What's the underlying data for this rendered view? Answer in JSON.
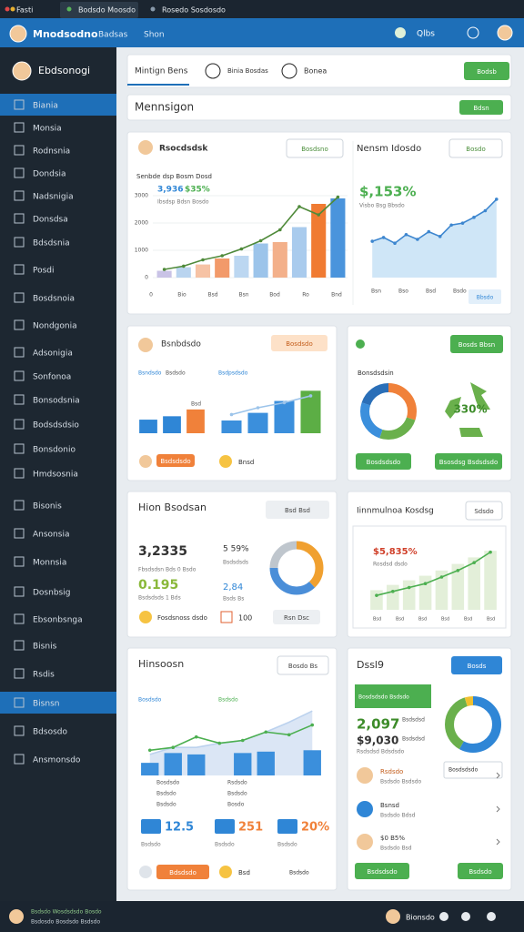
{
  "tabs": [
    "Fasti",
    "Bodsdo Moosdo",
    "Rosedo Sosdosdo"
  ],
  "header": {
    "title": "Mnodsodno",
    "nav": [
      "Badsas",
      "Shon"
    ],
    "user": "Qlbs"
  },
  "sidebar": {
    "title": "Ebdsonogi",
    "items": [
      "Biania",
      "Monsia",
      "Rodnsnia",
      "Dondsia",
      "Nadsnigia",
      "Donsdsa",
      "Bdsdsnia",
      "Posdi",
      "Bosdsnoia",
      "Nondgonia",
      "Adsonigia",
      "Sonfonoa",
      "Bonsodsnia",
      "Bodsdsdsio",
      "Bonsdonio",
      "Hmdsosnia",
      "Bisonis",
      "Ansonsia",
      "Monnsia",
      "Dosnbsig",
      "Ebsonbsnga",
      "Bisnis",
      "Rsdis",
      "Bisnsn",
      "Bdsosdo",
      "Ansmonsdo"
    ],
    "active": [
      0,
      23
    ]
  },
  "toolbar": {
    "tab": "Mintign Bens",
    "filters": [
      "Binia Bosdas",
      "Bonea"
    ],
    "button": "Bodsb"
  },
  "section": {
    "title": "Mennsigon",
    "button": "Bdsn"
  },
  "sales": {
    "title": "Rsocdsdsk",
    "button": "Bosdsno",
    "subtitle": "Senbde dsp Bosm Dosd",
    "stats": [
      "3,936",
      "$35%"
    ],
    "note": "Ibsdsp Bdsn Bosdo",
    "ylim": [
      0,
      3500
    ],
    "yticks": [
      0,
      1000,
      2000,
      3000
    ],
    "xlabels": [
      "0",
      "Bio",
      "Bsd",
      "Bsn",
      "Bod",
      "Ro",
      "Bnd"
    ],
    "bars": [
      250,
      380,
      480,
      700,
      800,
      1250,
      1300,
      1850,
      2700,
      2900
    ],
    "bar_colors": [
      "#c9c3e6",
      "#b9d4ef",
      "#f6c3a5",
      "#f29a6a",
      "#bcd7f1",
      "#9cc4ea",
      "#f3b08a",
      "#a9cbed",
      "#f07b32",
      "#4a94dc"
    ],
    "line": [
      300,
      420,
      650,
      800,
      1050,
      1350,
      1750,
      2600,
      2300,
      2950
    ],
    "line_color": "#4f8a3a"
  },
  "trend": {
    "title": "Nensm Idosdo",
    "button": "Bosdo",
    "stat": "$,153%",
    "note": "Visbo Bsg Bbsdo",
    "ylim": [
      0,
      100
    ],
    "values": [
      38,
      42,
      36,
      45,
      40,
      48,
      43,
      55,
      57,
      63,
      70,
      82
    ],
    "xlabels": [
      "Bsn",
      "Bso",
      "Bsd",
      "Bsdo"
    ],
    "legend": "Bbsdo",
    "color": "#3d86cf"
  },
  "compare": {
    "title": "Bsnbdsdo",
    "button": "Bosdsdo",
    "chip": "Bsdsdsdo",
    "badge": "Bnsd",
    "charts": [
      {
        "label": "Bsndsdo",
        "label2": "Bsdsdo",
        "peak": "Bsd",
        "ylim": [
          0,
          60
        ],
        "bars": [
          16,
          20,
          28
        ],
        "bar_colors": [
          "#2f86d6",
          "#2f86d6",
          "#f0813a"
        ]
      },
      {
        "label": "Bsdpsdsdo",
        "ylim": [
          0,
          60
        ],
        "bars": [
          15,
          24,
          38,
          50
        ],
        "bar_colors": [
          "#3b8fdc",
          "#3b8fdc",
          "#3b8fdc",
          "#5cae45"
        ],
        "line": [
          22,
          30,
          36,
          44
        ]
      }
    ]
  },
  "eco": {
    "label": "Bonsdsdsin",
    "button": "Bosds Bbsn",
    "donut": [
      30,
      25,
      25,
      20
    ],
    "donut_colors": [
      "#f0813a",
      "#6ab04c",
      "#3b8fdc",
      "#2a6fb8"
    ],
    "center": "330%",
    "buttons": [
      "Bosdsdsdo",
      "Bsosdsg Bsdsdsdo"
    ]
  },
  "metrics": {
    "title": "Hion Bsodsan",
    "button": "Bsd Bsd",
    "stats": [
      {
        "value": "3,2335",
        "label": "Fbsdsdsn Bds 0 Bsdo"
      },
      {
        "value": "5 59%",
        "label": "Bsdsdsds"
      },
      {
        "value": "0.195",
        "label": "Bsdsdsds 1 Bds"
      },
      {
        "value": "2,84",
        "label": "Bsds Bs"
      }
    ],
    "donut": [
      38,
      37,
      25
    ],
    "donut_colors": [
      "#f0a030",
      "#4a8ed8",
      "#bfc6cd"
    ],
    "footer": [
      "Fosdsnoss dsdo",
      "100",
      "Rsn Dsc"
    ]
  },
  "growth": {
    "title": "Iinnmulnoa Kosdsg",
    "button": "Sdsdo",
    "stat": "$5,835%",
    "note": "Rosdsd dsdo",
    "ylim": [
      0,
      100
    ],
    "bars": [
      30,
      38,
      45,
      52,
      60,
      70,
      80,
      90
    ],
    "line": [
      22,
      28,
      34,
      40,
      50,
      60,
      72,
      88
    ],
    "xlabels": [
      "Bsd",
      "Bsd",
      "Bsd",
      "Bsd",
      "Bsd",
      "Bsd"
    ]
  },
  "performance": {
    "title": "Hinsoosn",
    "button": "Bosdo Bs",
    "legend": [
      "Bosdsdo",
      "Bsdsdo"
    ],
    "ylim": [
      0,
      100
    ],
    "area": [
      30,
      40,
      40,
      46,
      50,
      62,
      76,
      92
    ],
    "bars": [
      18,
      32,
      30,
      0,
      32,
      34,
      0,
      36
    ],
    "line": [
      36,
      40,
      55,
      46,
      50,
      62,
      58,
      72
    ],
    "labels": [
      "Bosdsdo",
      "Rsdsdo",
      "Bsdsdo",
      "Bsdsdo",
      "Bsdsdo",
      "Bosdo"
    ],
    "kpis": [
      "12.5",
      "251",
      "20%"
    ],
    "kpi_labels": [
      "Bsdsdo",
      "Bsdsdo",
      "Bsdsdo"
    ],
    "footer": [
      "Bdsdsdo",
      "Bsd",
      "Bsdsdo"
    ]
  },
  "detail": {
    "title": "Dssl9",
    "button": "Bosds",
    "banner": "Bosdsdsdo Bsdsdo",
    "stats": [
      {
        "value": "2,097",
        "label": "Bsdsdsd"
      },
      {
        "value": "$9,030",
        "label": "Bsdsdsd"
      }
    ],
    "note": "Rsdsdsd Bdsdsdo",
    "select": "Bosdsdsdo",
    "donut": [
      58,
      37,
      5
    ],
    "donut_colors": [
      "#2f86d6",
      "#6ab04c",
      "#f0c030"
    ],
    "people": [
      {
        "name": "Rsdsdo",
        "sub": "Bsdsdo Bsdsdo"
      },
      {
        "name": "Bsnsd",
        "sub": "Bsdsdo Bdsd"
      },
      {
        "name": "$0 B5%",
        "sub": "Bsdsdo Bsd"
      }
    ],
    "buttons": [
      "Bsdsdsdo",
      "Bsdsdo"
    ]
  },
  "footer": {
    "left": [
      "Bsdsdo Wosdsdsdo Bosdo",
      "Bsdosdo Bosdsdo Bsdsdo"
    ],
    "user": "Bionsdo"
  }
}
